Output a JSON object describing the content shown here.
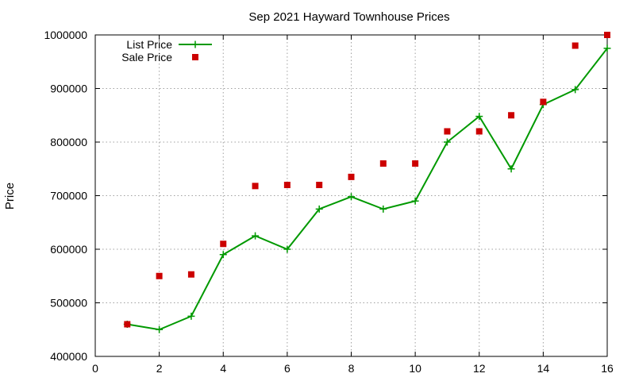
{
  "chart_data": {
    "type": "line",
    "title": "Sep 2021 Hayward Townhouse Prices",
    "xlabel": "",
    "ylabel": "Price",
    "xlim": [
      0,
      16
    ],
    "ylim": [
      400000,
      1000000
    ],
    "x_ticks": [
      0,
      2,
      4,
      6,
      8,
      10,
      12,
      14,
      16
    ],
    "y_ticks": [
      400000,
      500000,
      600000,
      700000,
      800000,
      900000,
      1000000
    ],
    "grid": true,
    "legend_position": "top-left",
    "series": [
      {
        "name": "List Price",
        "style": "line-with-plus-markers",
        "color": "#009900",
        "x": [
          1,
          2,
          3,
          4,
          5,
          6,
          7,
          8,
          9,
          10,
          11,
          12,
          13,
          14,
          15,
          16
        ],
        "values": [
          460000,
          450000,
          475000,
          590000,
          625000,
          600000,
          675000,
          698000,
          675000,
          690000,
          800000,
          848000,
          750000,
          870000,
          898000,
          975000
        ]
      },
      {
        "name": "Sale Price",
        "style": "square-markers",
        "color": "#cc0000",
        "x": [
          1,
          2,
          3,
          4,
          5,
          6,
          7,
          8,
          9,
          10,
          11,
          12,
          13,
          14,
          15,
          16
        ],
        "values": [
          460000,
          550000,
          553000,
          610000,
          718000,
          720000,
          720000,
          735000,
          760000,
          760000,
          820000,
          820000,
          850000,
          875000,
          980000,
          1000000
        ]
      }
    ]
  }
}
